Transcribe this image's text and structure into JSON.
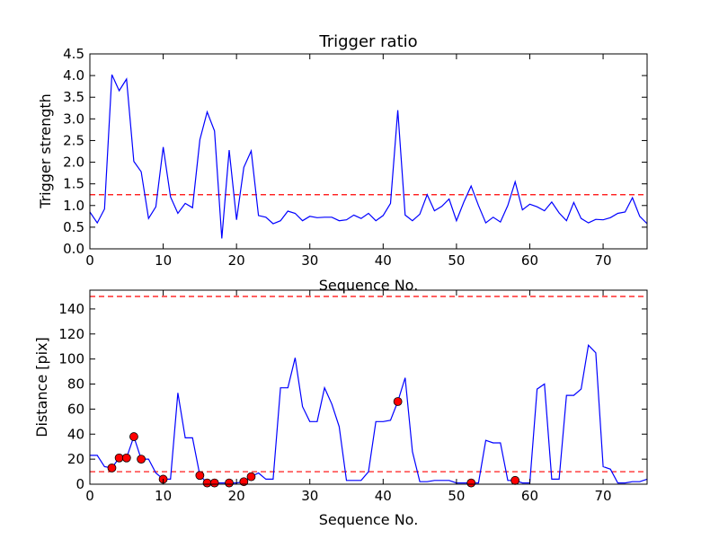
{
  "chart_data": [
    {
      "type": "line",
      "title": "Trigger ratio",
      "xlabel": "Sequence No.",
      "ylabel": "Trigger strength",
      "xlim": [
        0,
        76
      ],
      "ylim": [
        0,
        4.5
      ],
      "xticks": [
        "0",
        "10",
        "20",
        "30",
        "40",
        "50",
        "60",
        "70"
      ],
      "yticks": [
        "0.0",
        "0.5",
        "1.0",
        "1.5",
        "2.0",
        "2.5",
        "3.0",
        "3.5",
        "4.0",
        "4.5"
      ],
      "series": [
        {
          "color": "#0000ff",
          "x": [
            0,
            1,
            2,
            3,
            4,
            5,
            6,
            7,
            8,
            9,
            10,
            11,
            12,
            13,
            14,
            15,
            16,
            17,
            18,
            19,
            20,
            21,
            22,
            23,
            24,
            25,
            26,
            27,
            28,
            29,
            30,
            31,
            32,
            33,
            34,
            35,
            36,
            37,
            38,
            39,
            40,
            41,
            42,
            43,
            44,
            45,
            46,
            47,
            48,
            49,
            50,
            51,
            52,
            53,
            54,
            55,
            56,
            57,
            58,
            59,
            60,
            61,
            62,
            63,
            64,
            65,
            66,
            67,
            68,
            69,
            70,
            71,
            72,
            73,
            74,
            75,
            76
          ],
          "y": [
            0.85,
            0.6,
            0.92,
            4.02,
            3.65,
            3.92,
            2.02,
            1.78,
            0.7,
            0.97,
            2.35,
            1.2,
            0.82,
            1.05,
            0.95,
            2.52,
            3.16,
            2.72,
            0.24,
            2.28,
            0.67,
            1.88,
            2.26,
            0.77,
            0.73,
            0.58,
            0.65,
            0.87,
            0.82,
            0.65,
            0.75,
            0.72,
            0.73,
            0.73,
            0.65,
            0.67,
            0.78,
            0.7,
            0.82,
            0.65,
            0.77,
            1.05,
            3.2,
            0.78,
            0.65,
            0.8,
            1.25,
            0.88,
            0.98,
            1.15,
            0.65,
            1.08,
            1.45,
            1.0,
            0.6,
            0.73,
            0.62,
            1.0,
            1.55,
            0.9,
            1.03,
            0.97,
            0.88,
            1.08,
            0.83,
            0.65,
            1.07,
            0.7,
            0.6,
            0.68,
            0.67,
            0.72,
            0.82,
            0.85,
            1.18,
            0.75,
            0.58
          ]
        }
      ],
      "reference_lines": [
        {
          "y": 1.25,
          "color": "#ff0000",
          "style": "dashed"
        }
      ]
    },
    {
      "type": "line",
      "title": "",
      "xlabel": "Sequence No.",
      "ylabel": "Distance [pix]",
      "xlim": [
        0,
        76
      ],
      "ylim": [
        0,
        155
      ],
      "xticks": [
        "0",
        "10",
        "20",
        "30",
        "40",
        "50",
        "60",
        "70"
      ],
      "yticks": [
        "0",
        "20",
        "40",
        "60",
        "80",
        "100",
        "120",
        "140"
      ],
      "series": [
        {
          "color": "#0000ff",
          "x": [
            0,
            1,
            2,
            3,
            4,
            5,
            6,
            7,
            8,
            9,
            10,
            11,
            12,
            13,
            14,
            15,
            16,
            17,
            18,
            19,
            20,
            21,
            22,
            23,
            24,
            25,
            26,
            27,
            28,
            29,
            30,
            31,
            32,
            33,
            34,
            35,
            36,
            37,
            38,
            39,
            40,
            41,
            42,
            43,
            44,
            45,
            46,
            47,
            48,
            49,
            50,
            51,
            52,
            53,
            54,
            55,
            56,
            57,
            58,
            59,
            60,
            61,
            62,
            63,
            64,
            65,
            66,
            67,
            68,
            69,
            70,
            71,
            72,
            73,
            74,
            75,
            76
          ],
          "y": [
            23,
            23,
            14,
            13,
            21,
            21,
            38,
            20,
            20,
            9,
            4,
            4,
            73,
            37,
            37,
            7,
            1,
            1,
            1,
            1,
            1,
            2,
            6,
            9,
            4,
            4,
            77,
            77,
            101,
            62,
            50,
            50,
            77,
            64,
            46,
            3,
            3,
            3,
            10,
            50,
            50,
            51,
            66,
            85,
            26,
            2,
            2,
            3,
            3,
            3,
            1,
            1,
            1,
            1,
            35,
            33,
            33,
            3,
            3,
            1,
            1,
            76,
            80,
            4,
            4,
            71,
            71,
            76,
            111,
            105,
            14,
            12,
            1,
            1,
            2,
            2,
            4
          ]
        },
        {
          "type": "scatter",
          "color": "#ff0000",
          "x": [
            3,
            4,
            5,
            6,
            7,
            10,
            15,
            16,
            17,
            19,
            21,
            22,
            42,
            52,
            58
          ],
          "y": [
            13,
            21,
            21,
            38,
            20,
            4,
            7,
            1,
            1,
            1,
            2,
            6,
            66,
            1,
            3
          ]
        }
      ],
      "reference_lines": [
        {
          "y": 150,
          "color": "#ff0000",
          "style": "dashed"
        },
        {
          "y": 10,
          "color": "#ff0000",
          "style": "dashed"
        }
      ]
    }
  ]
}
